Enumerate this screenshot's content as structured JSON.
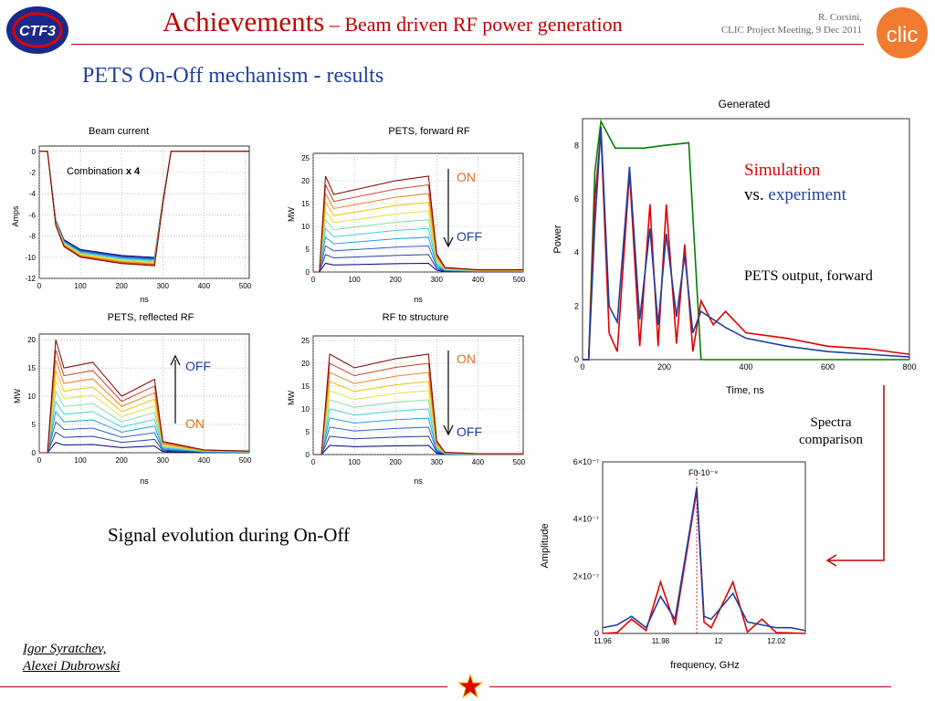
{
  "header": {
    "title_main": "Achievements",
    "title_sub": " – Beam driven RF power generation",
    "author_line1": "R. Corsini,",
    "author_line2": "CLIC Project Meeting, 9 Dec 2011",
    "logo_left_text": "CTF3",
    "logo_right_text": "clic"
  },
  "subtitle": "PETS On-Off mechanism - results",
  "colors": {
    "title_red": "#c00000",
    "subtitle_blue": "#1f3fa0",
    "simulation_red": "#e00000",
    "experiment_blue": "#1f3fa0"
  },
  "panels": {
    "beam_current": {
      "title": "Beam current",
      "ylabel": "Amps",
      "xlabel": "ns",
      "annotation_prefix": "Combination ",
      "annotation_bold": "x 4"
    },
    "forward_rf": {
      "title": "PETS, forward RF",
      "ylabel": "MW",
      "xlabel": "ns",
      "label_top": "ON",
      "label_bottom": "OFF"
    },
    "reflected_rf": {
      "title": "PETS, reflected RF",
      "ylabel": "MW",
      "xlabel": "ns",
      "label_top": "OFF",
      "label_bottom": "ON"
    },
    "rf_structure": {
      "title": "RF to structure",
      "ylabel": "MW",
      "xlabel": "ns",
      "label_top": "ON",
      "label_bottom": "OFF"
    },
    "generated": {
      "title": "Generated",
      "ylabel": "Power",
      "xlabel": "Time, ns"
    },
    "spectra": {
      "ylabel": "Amplitude",
      "xlabel": "frequency, GHz",
      "marker": "F0-10⁻⁹"
    }
  },
  "texts": {
    "simulation": "Simulation",
    "vs": "vs. ",
    "experiment": "experiment",
    "pets_output": "PETS output, forward",
    "spectra_line1": "Spectra",
    "spectra_line2": "comparison",
    "signal_caption": "Signal evolution during On-Off",
    "author1": "Igor Syratchev,",
    "author2": "Alexei Dubrowski"
  },
  "chart_data": [
    {
      "type": "line",
      "title": "Beam current",
      "xlabel": "ns",
      "ylabel": "Amps",
      "xlim": [
        0,
        510
      ],
      "ylim": [
        -12,
        0.5
      ],
      "xticks": [
        0,
        100,
        200,
        300,
        400,
        500
      ],
      "yticks": [
        0,
        -2,
        -4,
        -6,
        -8,
        -10,
        -12
      ],
      "grid": true,
      "series_envelope": {
        "x": [
          0,
          20,
          40,
          60,
          100,
          200,
          280,
          300,
          320,
          400,
          510
        ],
        "y": [
          0,
          0,
          -7,
          -9,
          -10,
          -10.6,
          -10.8,
          -5,
          0,
          0,
          0
        ]
      }
    },
    {
      "type": "line",
      "title": "PETS, forward RF",
      "xlabel": "ns",
      "ylabel": "MW",
      "xlim": [
        0,
        510
      ],
      "ylim": [
        0,
        26
      ],
      "xticks": [
        0,
        100,
        200,
        300,
        400,
        500
      ],
      "yticks": [
        0,
        5,
        10,
        15,
        20,
        25
      ],
      "grid": true,
      "series_envelope": {
        "x": [
          0,
          15,
          30,
          50,
          100,
          200,
          280,
          300,
          320,
          400,
          510
        ],
        "y": [
          0,
          0,
          21,
          17,
          18,
          20,
          21,
          4,
          1,
          0.5,
          0.5
        ]
      }
    },
    {
      "type": "line",
      "title": "PETS, reflected RF",
      "xlabel": "ns",
      "ylabel": "MW",
      "xlim": [
        0,
        510
      ],
      "ylim": [
        0,
        21
      ],
      "xticks": [
        0,
        100,
        200,
        300,
        400,
        500
      ],
      "yticks": [
        0,
        5,
        10,
        15,
        20
      ],
      "grid": true,
      "series_envelope": {
        "x": [
          0,
          20,
          40,
          60,
          130,
          200,
          280,
          300,
          400,
          510
        ],
        "y": [
          0,
          0,
          20,
          15,
          16,
          10,
          13,
          2,
          0.5,
          0.3
        ]
      }
    },
    {
      "type": "line",
      "title": "RF to structure",
      "xlabel": "ns",
      "ylabel": "MW",
      "xlim": [
        0,
        510
      ],
      "ylim": [
        0,
        26
      ],
      "xticks": [
        0,
        100,
        200,
        300,
        400,
        500
      ],
      "yticks": [
        0,
        5,
        10,
        15,
        20,
        25
      ],
      "grid": true,
      "series_envelope": {
        "x": [
          0,
          20,
          40,
          100,
          200,
          280,
          300,
          320,
          400,
          510
        ],
        "y": [
          0,
          0,
          22,
          19,
          21,
          22,
          3,
          0.5,
          0.2,
          0.2
        ]
      }
    },
    {
      "type": "line",
      "title": "Generated",
      "xlabel": "Time, ns",
      "ylabel": "Power",
      "xlim": [
        0,
        800
      ],
      "ylim": [
        0,
        9
      ],
      "xticks": [
        0,
        200,
        400,
        600,
        800
      ],
      "yticks": [
        0,
        2,
        4,
        6,
        8
      ],
      "grid": false,
      "series": [
        {
          "color": "#008000",
          "x": [
            0,
            15,
            30,
            45,
            80,
            150,
            200,
            260,
            275,
            290,
            800
          ],
          "y": [
            0,
            0,
            7,
            8.9,
            7.9,
            7.9,
            8,
            8.1,
            4,
            0,
            0
          ]
        },
        {
          "color": "#e00000",
          "x": [
            0,
            15,
            30,
            45,
            65,
            85,
            115,
            140,
            165,
            185,
            205,
            230,
            250,
            270,
            290,
            320,
            350,
            400,
            500,
            600,
            700,
            800
          ],
          "y": [
            0,
            0,
            6,
            8.5,
            1,
            0.3,
            7,
            0.5,
            5.8,
            0.5,
            5.8,
            0.6,
            4.3,
            0.3,
            2.2,
            1.3,
            1.8,
            1,
            0.8,
            0.5,
            0.4,
            0.2
          ]
        },
        {
          "color": "#1f3fa0",
          "x": [
            0,
            15,
            30,
            45,
            65,
            85,
            115,
            140,
            165,
            185,
            205,
            230,
            250,
            270,
            290,
            320,
            350,
            400,
            500,
            600,
            700,
            800
          ],
          "y": [
            0,
            0,
            5,
            8.7,
            2,
            1.4,
            7.2,
            1.5,
            4.9,
            1.3,
            4.7,
            1.6,
            3.9,
            1,
            1.8,
            1.5,
            1.2,
            0.8,
            0.5,
            0.3,
            0.2,
            0.1
          ]
        }
      ]
    },
    {
      "type": "line",
      "title": "",
      "xlabel": "frequency, GHz",
      "ylabel": "Amplitude",
      "xlim": [
        11.96,
        12.03
      ],
      "ylim": [
        0,
        6e-07
      ],
      "xticks": [
        11.96,
        11.98,
        12,
        12.02
      ],
      "yticks_labels": [
        "0",
        "2×10⁻⁷",
        "4×10⁻⁷",
        "6×10⁻⁷"
      ],
      "grid": false,
      "series": [
        {
          "color": "#e00000",
          "x": [
            11.96,
            11.965,
            11.97,
            11.975,
            11.98,
            11.985,
            11.9925,
            11.995,
            11.9975,
            12.005,
            12.01,
            12.015,
            12.02,
            12.025,
            12.03
          ],
          "y": [
            0,
            3e-09,
            5e-08,
            1e-08,
            1.8e-07,
            3e-08,
            5e-07,
            4e-08,
            2e-08,
            1.8e-07,
            5e-09,
            5e-08,
            3e-09,
            2e-09,
            0
          ]
        },
        {
          "color": "#1f3fa0",
          "x": [
            11.96,
            11.965,
            11.97,
            11.975,
            11.98,
            11.985,
            11.9925,
            11.995,
            11.9975,
            12.005,
            12.01,
            12.015,
            12.02,
            12.025,
            12.03
          ],
          "y": [
            2e-08,
            3e-08,
            6e-08,
            2e-08,
            1.3e-07,
            5e-08,
            5.1e-07,
            6e-08,
            5e-08,
            1.4e-07,
            4e-08,
            3e-08,
            2e-08,
            2e-08,
            1e-08
          ]
        }
      ]
    }
  ]
}
